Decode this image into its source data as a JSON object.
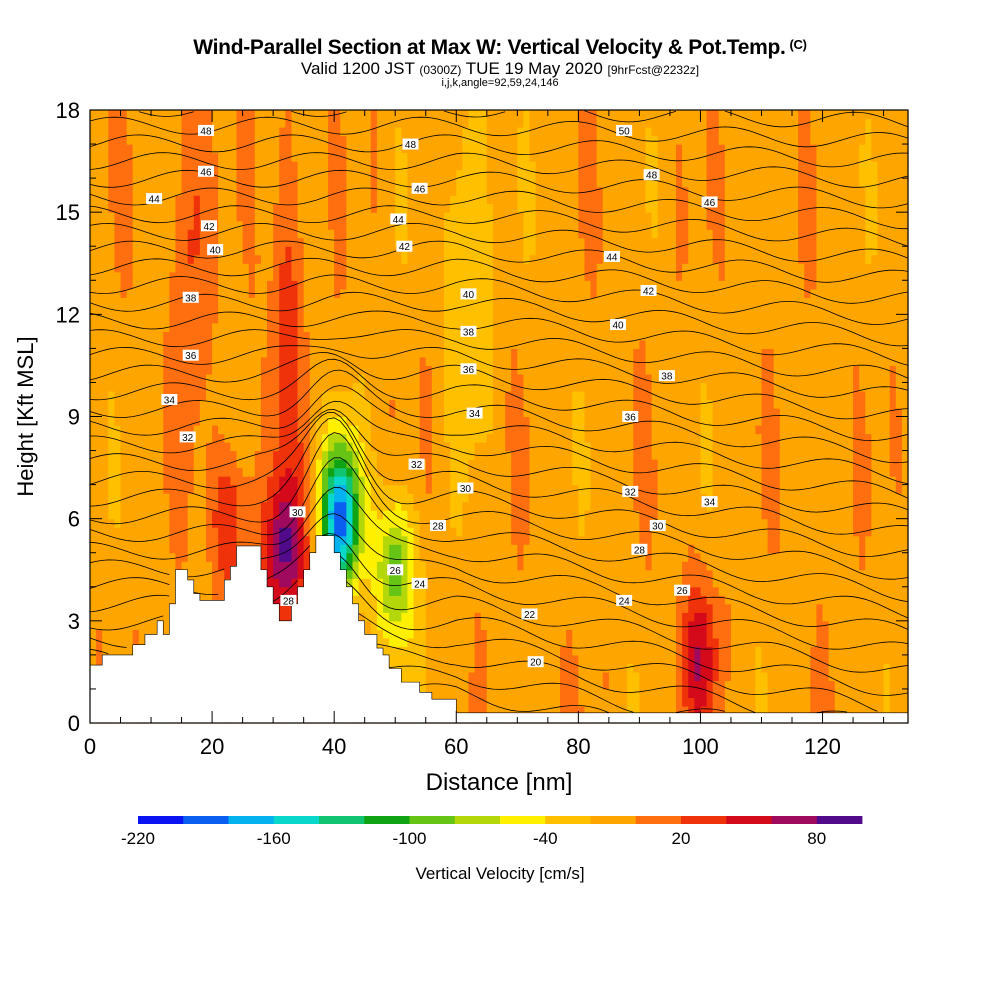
{
  "header": {
    "title": "Wind-Parallel Section at Max W: Vertical Velocity & Pot.Temp.",
    "title_copyright": "(C)",
    "valid_prefix": "Valid 1200 JST",
    "valid_utc": "(0300Z)",
    "valid_date": "TUE 19 May 2020",
    "forecast": "[9hrFcst@2232z]",
    "indices": "i,j,k,angle=92,59,24,146"
  },
  "chart_data": {
    "type": "heatmap",
    "title": "Wind-Parallel Section at Max W: Vertical Velocity & Pot.Temp.",
    "xlabel": "Distance [nm]",
    "ylabel": "Height [Kft MSL]",
    "xlim": [
      0,
      134
    ],
    "ylim": [
      0,
      18
    ],
    "x_ticks": [
      0,
      20,
      40,
      60,
      80,
      100,
      120
    ],
    "y_ticks": [
      0,
      3,
      6,
      9,
      12,
      15,
      18
    ],
    "grid": false,
    "colorbar": {
      "label": "Vertical Velocity [cm/s]",
      "min": -220,
      "step": 20,
      "tick_values": [
        -220,
        -160,
        -100,
        -40,
        20,
        80
      ],
      "tick_labels": [
        "-220",
        "-160",
        "-100",
        "-40",
        "20",
        "80"
      ],
      "colors": [
        "#0a14f0",
        "#0a5ef0",
        "#04b2f0",
        "#0ad7cc",
        "#10c472",
        "#10a414",
        "#66c414",
        "#b4d70a",
        "#fff000",
        "#ffc000",
        "#ffa500",
        "#ff6f10",
        "#f0320a",
        "#d40a1a",
        "#a00a5e",
        "#500a8a"
      ]
    },
    "velocity_features": [
      {
        "name": "updraft",
        "x": 16.5,
        "z": 14.5,
        "peak_cm_s": 40
      },
      {
        "name": "updraft",
        "x": 32,
        "z": 12,
        "peak_cm_s": 40
      },
      {
        "name": "updraft",
        "x": 23,
        "z": 6,
        "peak_cm_s": 50
      },
      {
        "name": "updraft",
        "x": 32,
        "z": 5,
        "peak_cm_s": 90
      },
      {
        "name": "downdraft",
        "x": 41,
        "z": 6,
        "peak_cm_s": -180
      },
      {
        "name": "downdraft",
        "x": 50,
        "z": 4.5,
        "peak_cm_s": -90
      },
      {
        "name": "updraft",
        "x": 100,
        "z": 2,
        "peak_cm_s": 60
      },
      {
        "name": "downdraft",
        "x": 62,
        "z": 14,
        "peak_cm_s": -40
      }
    ],
    "terrain_profile": [
      [
        0,
        1.7
      ],
      [
        2,
        1.7
      ],
      [
        2,
        2.0
      ],
      [
        7,
        2.0
      ],
      [
        7,
        2.3
      ],
      [
        9,
        2.3
      ],
      [
        9,
        2.6
      ],
      [
        11,
        2.6
      ],
      [
        11,
        3.0
      ],
      [
        12,
        3.0
      ],
      [
        12,
        2.6
      ],
      [
        13,
        2.6
      ],
      [
        13,
        3.5
      ],
      [
        14,
        3.5
      ],
      [
        14,
        4.5
      ],
      [
        16,
        4.5
      ],
      [
        16,
        4.2
      ],
      [
        17,
        4.2
      ],
      [
        17,
        3.8
      ],
      [
        18,
        3.8
      ],
      [
        18,
        3.6
      ],
      [
        22,
        3.6
      ],
      [
        22,
        4.2
      ],
      [
        23,
        4.2
      ],
      [
        23,
        4.6
      ],
      [
        24,
        4.6
      ],
      [
        24,
        5.2
      ],
      [
        28,
        5.2
      ],
      [
        28,
        4.5
      ],
      [
        29,
        4.5
      ],
      [
        29,
        4.0
      ],
      [
        30,
        4.0
      ],
      [
        30,
        3.5
      ],
      [
        31,
        3.5
      ],
      [
        31,
        3.0
      ],
      [
        33,
        3.0
      ],
      [
        33,
        3.5
      ],
      [
        34,
        3.5
      ],
      [
        34,
        4.0
      ],
      [
        35,
        4.0
      ],
      [
        35,
        4.5
      ],
      [
        36,
        4.5
      ],
      [
        36,
        5.0
      ],
      [
        37,
        5.0
      ],
      [
        37,
        5.5
      ],
      [
        40,
        5.5
      ],
      [
        40,
        5.0
      ],
      [
        41,
        5.0
      ],
      [
        41,
        4.5
      ],
      [
        42,
        4.5
      ],
      [
        42,
        4.0
      ],
      [
        43,
        4.0
      ],
      [
        43,
        3.5
      ],
      [
        44,
        3.5
      ],
      [
        44,
        3.0
      ],
      [
        45,
        3.0
      ],
      [
        45,
        2.6
      ],
      [
        47,
        2.6
      ],
      [
        47,
        2.2
      ],
      [
        48,
        2.2
      ],
      [
        48,
        2.0
      ],
      [
        49,
        2.0
      ],
      [
        49,
        1.6
      ],
      [
        51,
        1.6
      ],
      [
        51,
        1.2
      ],
      [
        54,
        1.2
      ],
      [
        54,
        0.9
      ],
      [
        56,
        0.9
      ],
      [
        56,
        0.7
      ],
      [
        60,
        0.7
      ],
      [
        60,
        0.3
      ],
      [
        134,
        0.3
      ]
    ],
    "theta_contour_labels": [
      {
        "text": "48",
        "x": 19.0,
        "z": 17.4
      },
      {
        "text": "46",
        "x": 19.0,
        "z": 16.2
      },
      {
        "text": "44",
        "x": 10.5,
        "z": 15.4
      },
      {
        "text": "42",
        "x": 19.5,
        "z": 14.6
      },
      {
        "text": "40",
        "x": 20.5,
        "z": 13.9
      },
      {
        "text": "38",
        "x": 16.5,
        "z": 12.5
      },
      {
        "text": "36",
        "x": 16.5,
        "z": 10.8
      },
      {
        "text": "34",
        "x": 13.0,
        "z": 9.5
      },
      {
        "text": "32",
        "x": 16.0,
        "z": 8.4
      },
      {
        "text": "30",
        "x": 34.0,
        "z": 6.2
      },
      {
        "text": "28",
        "x": 32.5,
        "z": 3.6
      },
      {
        "text": "48",
        "x": 52.5,
        "z": 17.0
      },
      {
        "text": "46",
        "x": 54.0,
        "z": 15.7
      },
      {
        "text": "44",
        "x": 50.5,
        "z": 14.8
      },
      {
        "text": "42",
        "x": 51.5,
        "z": 14.0
      },
      {
        "text": "40",
        "x": 62.0,
        "z": 12.6
      },
      {
        "text": "38",
        "x": 62.0,
        "z": 11.5
      },
      {
        "text": "36",
        "x": 62.0,
        "z": 10.4
      },
      {
        "text": "34",
        "x": 63.0,
        "z": 9.1
      },
      {
        "text": "32",
        "x": 53.5,
        "z": 7.6
      },
      {
        "text": "30",
        "x": 61.5,
        "z": 6.9
      },
      {
        "text": "28",
        "x": 57.0,
        "z": 5.8
      },
      {
        "text": "26",
        "x": 50.0,
        "z": 4.5
      },
      {
        "text": "24",
        "x": 54.0,
        "z": 4.1
      },
      {
        "text": "22",
        "x": 72.0,
        "z": 3.2
      },
      {
        "text": "20",
        "x": 73.0,
        "z": 1.8
      },
      {
        "text": "50",
        "x": 87.5,
        "z": 17.4
      },
      {
        "text": "48",
        "x": 92.0,
        "z": 16.1
      },
      {
        "text": "46",
        "x": 101.5,
        "z": 15.3
      },
      {
        "text": "44",
        "x": 85.5,
        "z": 13.7
      },
      {
        "text": "42",
        "x": 91.5,
        "z": 12.7
      },
      {
        "text": "40",
        "x": 86.5,
        "z": 11.7
      },
      {
        "text": "38",
        "x": 94.5,
        "z": 10.2
      },
      {
        "text": "36",
        "x": 88.5,
        "z": 9.0
      },
      {
        "text": "34",
        "x": 101.5,
        "z": 6.5
      },
      {
        "text": "32",
        "x": 88.5,
        "z": 6.8
      },
      {
        "text": "30",
        "x": 93.0,
        "z": 5.8
      },
      {
        "text": "28",
        "x": 90.0,
        "z": 5.1
      },
      {
        "text": "26",
        "x": 97.0,
        "z": 3.9
      },
      {
        "text": "24",
        "x": 87.5,
        "z": 3.6
      }
    ]
  }
}
